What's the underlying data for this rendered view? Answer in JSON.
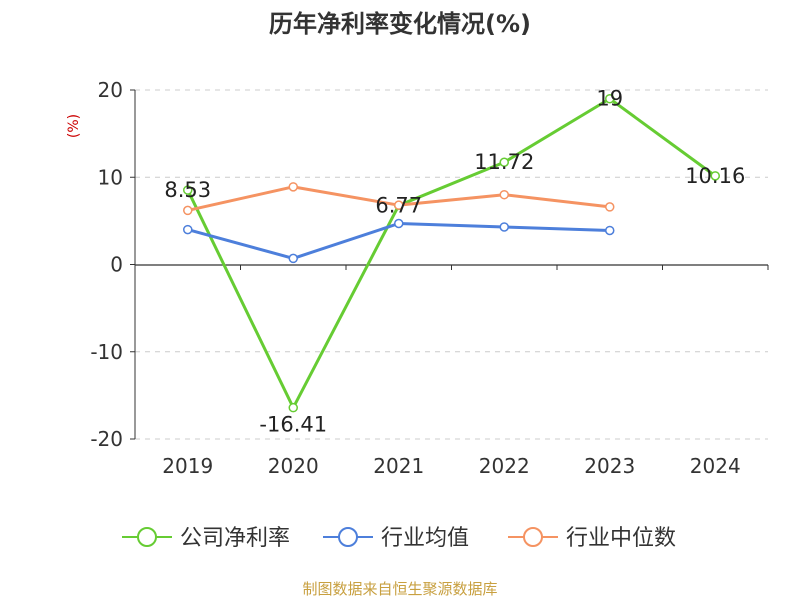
{
  "chart_data": {
    "type": "line",
    "title": "历年净利率变化情况(%)",
    "ylabel": "(%)",
    "xlabel": "",
    "categories": [
      "2019",
      "2020",
      "2021",
      "2022",
      "2023",
      "2024"
    ],
    "ylim": [
      -20,
      20
    ],
    "yticks": [
      20,
      10,
      0,
      -10,
      -20
    ],
    "grid": true,
    "legend_position": "bottom",
    "series": [
      {
        "name": "公司净利率",
        "color": "#66cc33",
        "values": [
          8.53,
          -16.41,
          6.77,
          11.72,
          19,
          10.16
        ],
        "labels": [
          "8.53",
          "-16.41",
          "6.77",
          "11.72",
          "19",
          "10.16"
        ]
      },
      {
        "name": "行业均值",
        "color": "#4d7fdb",
        "values": [
          4.0,
          0.7,
          4.7,
          4.3,
          3.9,
          null
        ],
        "labels": []
      },
      {
        "name": "行业中位数",
        "color": "#f59362",
        "values": [
          6.2,
          8.9,
          6.8,
          8.0,
          6.6,
          null
        ],
        "labels": []
      }
    ]
  },
  "footer": {
    "source": "制图数据来自恒生聚源数据库"
  }
}
